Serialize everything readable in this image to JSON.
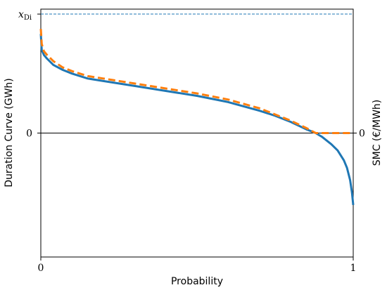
{
  "chart_data": {
    "type": "line",
    "xlabel": "Probability",
    "ylabel_left": "Duration Curve (GWh)",
    "ylabel_right": "SMC (€/MWh)",
    "x_ticks": [
      "0",
      "1"
    ],
    "y_ticks_left": [
      "x_Di",
      "0"
    ],
    "y_ticks_right": [
      "0"
    ],
    "xlim": [
      0,
      1
    ],
    "ylim": [
      -1.0,
      1.0
    ],
    "reference_line": {
      "label": "x_Di",
      "y": 0.96,
      "style": "dashed"
    },
    "zero_line": {
      "y": 0
    },
    "series": [
      {
        "style": "solid",
        "color": "#1f77b4",
        "x": [
          0,
          0.003,
          0.01,
          0.02,
          0.04,
          0.07,
          0.1,
          0.15,
          0.2,
          0.3,
          0.4,
          0.5,
          0.6,
          0.7,
          0.75,
          0.8,
          0.85,
          0.88,
          0.9,
          0.93,
          0.95,
          0.97,
          0.98,
          0.99,
          0.996,
          1.0
        ],
        "y": [
          0.8,
          0.67,
          0.63,
          0.6,
          0.55,
          0.51,
          0.48,
          0.44,
          0.42,
          0.38,
          0.34,
          0.3,
          0.25,
          0.18,
          0.14,
          0.09,
          0.03,
          0.0,
          -0.03,
          -0.09,
          -0.14,
          -0.22,
          -0.28,
          -0.38,
          -0.48,
          -0.58
        ]
      },
      {
        "style": "dashed",
        "color": "#ff7f0e",
        "x": [
          0,
          0.003,
          0.01,
          0.02,
          0.04,
          0.07,
          0.1,
          0.15,
          0.2,
          0.3,
          0.4,
          0.5,
          0.6,
          0.7,
          0.75,
          0.8,
          0.85,
          0.88,
          0.9,
          0.95,
          1.0
        ],
        "y": [
          0.84,
          0.72,
          0.66,
          0.63,
          0.58,
          0.53,
          0.5,
          0.46,
          0.44,
          0.4,
          0.36,
          0.32,
          0.27,
          0.2,
          0.15,
          0.1,
          0.04,
          0.0,
          0.0,
          0.0,
          0.0
        ]
      }
    ]
  }
}
